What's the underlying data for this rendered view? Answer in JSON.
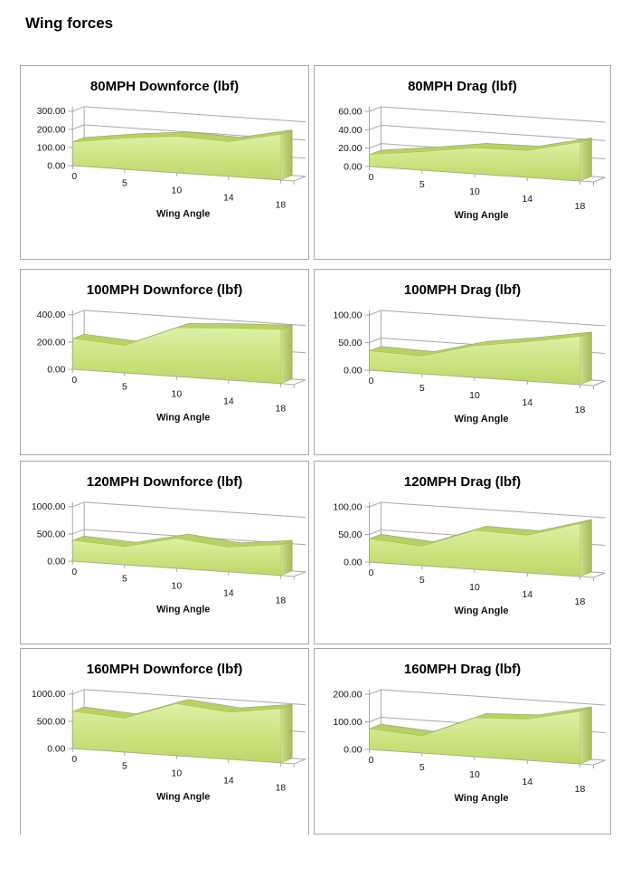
{
  "page": {
    "title": "Wing forces"
  },
  "axis": {
    "xlabel": "Wing Angle"
  },
  "colors": {
    "box_border": "#a9a9a9",
    "grid": "#a9a9a9",
    "text": "#161616",
    "area_top": "#b7d162",
    "area_edge": "#98b248",
    "area_front_top": "#ddf0a6",
    "area_front_mid": "#cce37f",
    "area_front_bottom": "#bdd76a",
    "area_side_light": "#cddf8e",
    "area_side_dark": "#a6ba55"
  },
  "chart_data": [
    {
      "type": "area",
      "title": "80MPH Downforce (lbf)",
      "xlabel": "Wing Angle",
      "categories": [
        0,
        5,
        10,
        14,
        18
      ],
      "values": [
        130,
        170,
        200,
        190,
        250
      ],
      "yticks": [
        0,
        100,
        200,
        300
      ],
      "ylim": [
        0,
        300
      ],
      "tick_format": "0.00",
      "grid": true,
      "legend": false
    },
    {
      "type": "area",
      "title": "80MPH Drag (lbf)",
      "xlabel": "Wing Angle",
      "categories": [
        0,
        5,
        10,
        14,
        18
      ],
      "values": [
        13,
        20,
        28,
        29,
        42
      ],
      "yticks": [
        0,
        20,
        40,
        60
      ],
      "ylim": [
        0,
        60
      ],
      "tick_format": "0.00",
      "grid": true,
      "legend": false
    },
    {
      "type": "area",
      "title": "100MPH Downforce (lbf)",
      "xlabel": "Wing Angle",
      "categories": [
        0,
        5,
        10,
        14,
        18
      ],
      "values": [
        225,
        200,
        355,
        380,
        395
      ],
      "yticks": [
        0,
        200,
        400
      ],
      "ylim": [
        0,
        400
      ],
      "tick_format": "0.00",
      "grid": true,
      "legend": false
    },
    {
      "type": "area",
      "title": "100MPH Drag (lbf)",
      "xlabel": "Wing Angle",
      "categories": [
        0,
        5,
        10,
        14,
        18
      ],
      "values": [
        35,
        32,
        57,
        71,
        87
      ],
      "yticks": [
        0,
        50,
        100
      ],
      "ylim": [
        0,
        100
      ],
      "tick_format": "0.00",
      "grid": true,
      "legend": false
    },
    {
      "type": "area",
      "title": "120MPH Downforce (lbf)",
      "xlabel": "Wing Angle",
      "categories": [
        0,
        5,
        10,
        14,
        18
      ],
      "values": [
        380,
        330,
        545,
        450,
        560
      ],
      "yticks": [
        0,
        500,
        1000
      ],
      "ylim": [
        0,
        1000
      ],
      "tick_format": "0.00",
      "grid": true,
      "legend": false
    },
    {
      "type": "area",
      "title": "120MPH Drag (lbf)",
      "xlabel": "Wing Angle",
      "categories": [
        0,
        5,
        10,
        14,
        18
      ],
      "values": [
        42,
        35,
        70,
        68,
        95
      ],
      "yticks": [
        0,
        50,
        100
      ],
      "ylim": [
        0,
        100
      ],
      "tick_format": "0.00",
      "grid": true,
      "legend": false
    },
    {
      "type": "area",
      "title": "160MPH Downforce (lbf)",
      "xlabel": "Wing Angle",
      "categories": [
        0,
        5,
        10,
        14,
        18
      ],
      "values": [
        680,
        620,
        950,
        860,
        990
      ],
      "yticks": [
        0,
        500,
        1000
      ],
      "ylim": [
        0,
        1000
      ],
      "tick_format": "0.00",
      "grid": true,
      "legend": false
    },
    {
      "type": "area",
      "title": "160MPH Drag (lbf)",
      "xlabel": "Wing Angle",
      "categories": [
        0,
        5,
        10,
        14,
        18
      ],
      "values": [
        75,
        62,
        140,
        148,
        190
      ],
      "yticks": [
        0,
        100,
        200
      ],
      "ylim": [
        0,
        200
      ],
      "tick_format": "0.00",
      "grid": true,
      "legend": false
    }
  ]
}
